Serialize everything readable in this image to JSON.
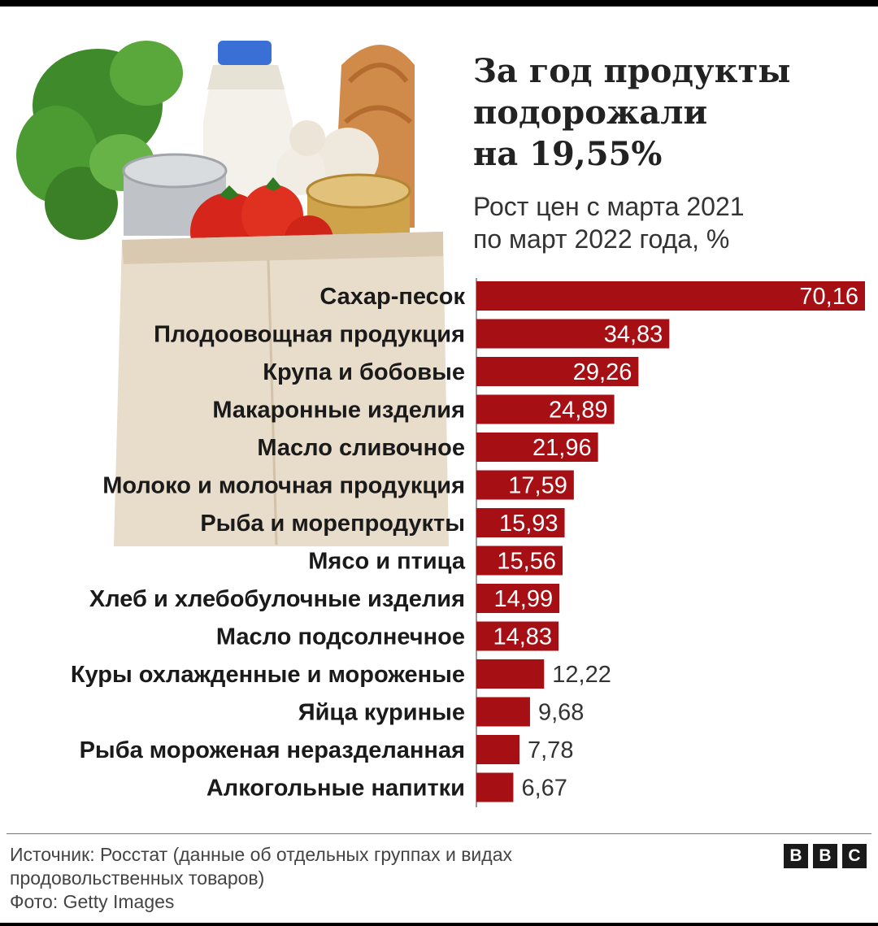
{
  "header": {
    "title_lines": [
      "За год продукты",
      "подорожали",
      "на 19,55%"
    ],
    "subtitle_lines": [
      "Рост цен с марта 2021",
      "по март 2022 года, %"
    ]
  },
  "chart_data": {
    "type": "bar",
    "orientation": "horizontal",
    "title": "За год продукты подорожали на 19,55%",
    "subtitle": "Рост цен с марта 2021 по март 2022 года, %",
    "categories": [
      "Сахар-песок",
      "Плодоовощная продукция",
      "Крупа и бобовые",
      "Макаронные изделия",
      "Масло сливочное",
      "Молоко и молочная продукция",
      "Рыба и морепродукты",
      "Мясо и птица",
      "Хлеб и хлебобулочные изделия",
      "Масло подсолнечное",
      "Куры охлажденные и мороженые",
      "Яйца куриные",
      "Рыба мороженая неразделанная",
      "Алкогольные напитки"
    ],
    "values": [
      70.16,
      34.83,
      29.26,
      24.89,
      21.96,
      17.59,
      15.93,
      15.56,
      14.99,
      14.83,
      12.22,
      9.68,
      7.78,
      6.67
    ],
    "value_labels": [
      "70,16",
      "34,83",
      "29,26",
      "24,89",
      "21,96",
      "17,59",
      "15,93",
      "15,56",
      "14,99",
      "14,83",
      "12,22",
      "9,68",
      "7,78",
      "6,67"
    ],
    "xlim": [
      0,
      70.16
    ],
    "grid": false,
    "bar_color": "#a60f14",
    "label_inside_color": "#ffffff",
    "label_outside_color": "#333333"
  },
  "footer": {
    "source_lines": [
      "Источник: Росстат (данные об отдельных группах и видах",
      "продовольственных товаров)",
      "Фото: Getty Images"
    ],
    "logo_letters": [
      "B",
      "B",
      "C"
    ]
  }
}
